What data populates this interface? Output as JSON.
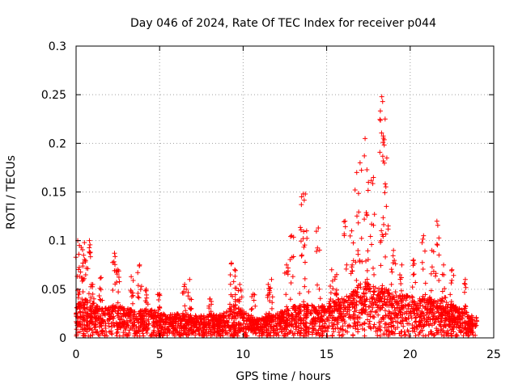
{
  "chart_data": {
    "type": "scatter",
    "title": "Day 046 of 2024, Rate Of TEC Index for receiver p044",
    "xlabel": "GPS time / hours",
    "ylabel": "ROTI / TECUs",
    "xlim": [
      0,
      25
    ],
    "ylim": [
      0,
      0.3
    ],
    "xticks": [
      0,
      5,
      10,
      15,
      20,
      25
    ],
    "xtick_labels": [
      "0",
      "5",
      "10",
      "15",
      "20",
      "25"
    ],
    "yticks": [
      0,
      0.05,
      0.1,
      0.15,
      0.2,
      0.25,
      0.3
    ],
    "ytick_labels": [
      "0",
      "0.05",
      "0.1",
      "0.15",
      "0.2",
      "0.25",
      "0.3"
    ],
    "grid": true,
    "marker": "+",
    "color": "#ff0000",
    "series": [
      {
        "name": "ROTI",
        "envelope": {
          "x": [
            0,
            0.5,
            1,
            1.5,
            2,
            2.5,
            3,
            3.5,
            4,
            4.5,
            5,
            5.5,
            6,
            6.5,
            7,
            7.5,
            8,
            8.5,
            9,
            9.5,
            10,
            10.5,
            11,
            11.5,
            12,
            12.5,
            13,
            13.5,
            14,
            14.5,
            15,
            15.5,
            16,
            16.5,
            17,
            17.5,
            18,
            18.5,
            19,
            19.5,
            20,
            20.5,
            21,
            21.5,
            22,
            22.5,
            23,
            23.5,
            24
          ],
          "typical": [
            0.03,
            0.035,
            0.032,
            0.026,
            0.028,
            0.03,
            0.027,
            0.024,
            0.025,
            0.026,
            0.022,
            0.021,
            0.022,
            0.022,
            0.02,
            0.02,
            0.021,
            0.02,
            0.024,
            0.03,
            0.025,
            0.018,
            0.017,
            0.02,
            0.022,
            0.025,
            0.028,
            0.03,
            0.03,
            0.028,
            0.03,
            0.033,
            0.036,
            0.04,
            0.05,
            0.05,
            0.045,
            0.045,
            0.04,
            0.038,
            0.038,
            0.035,
            0.035,
            0.036,
            0.033,
            0.03,
            0.026,
            0.022,
            0.018
          ]
        },
        "peaks": [
          {
            "x": 0.1,
            "y": 0.1
          },
          {
            "x": 0.2,
            "y": 0.095
          },
          {
            "x": 0.45,
            "y": 0.085
          },
          {
            "x": 0.5,
            "y": 0.098
          },
          {
            "x": 0.8,
            "y": 0.1
          },
          {
            "x": 1.0,
            "y": 0.055
          },
          {
            "x": 1.5,
            "y": 0.062
          },
          {
            "x": 2.3,
            "y": 0.087
          },
          {
            "x": 2.5,
            "y": 0.07
          },
          {
            "x": 3.3,
            "y": 0.063
          },
          {
            "x": 3.8,
            "y": 0.075
          },
          {
            "x": 4.2,
            "y": 0.05
          },
          {
            "x": 5.0,
            "y": 0.045
          },
          {
            "x": 6.5,
            "y": 0.055
          },
          {
            "x": 6.8,
            "y": 0.06
          },
          {
            "x": 8.0,
            "y": 0.04
          },
          {
            "x": 9.3,
            "y": 0.077
          },
          {
            "x": 9.5,
            "y": 0.07
          },
          {
            "x": 9.8,
            "y": 0.055
          },
          {
            "x": 10.6,
            "y": 0.045
          },
          {
            "x": 11.5,
            "y": 0.055
          },
          {
            "x": 11.7,
            "y": 0.06
          },
          {
            "x": 12.6,
            "y": 0.075
          },
          {
            "x": 12.9,
            "y": 0.105
          },
          {
            "x": 13.5,
            "y": 0.145
          },
          {
            "x": 13.6,
            "y": 0.148
          },
          {
            "x": 13.8,
            "y": 0.11
          },
          {
            "x": 14.5,
            "y": 0.113
          },
          {
            "x": 15.3,
            "y": 0.07
          },
          {
            "x": 15.6,
            "y": 0.065
          },
          {
            "x": 16.1,
            "y": 0.12
          },
          {
            "x": 16.5,
            "y": 0.11
          },
          {
            "x": 16.8,
            "y": 0.17
          },
          {
            "x": 17.0,
            "y": 0.18
          },
          {
            "x": 17.3,
            "y": 0.205
          },
          {
            "x": 17.5,
            "y": 0.16
          },
          {
            "x": 17.8,
            "y": 0.165
          },
          {
            "x": 18.3,
            "y": 0.248
          },
          {
            "x": 18.35,
            "y": 0.243
          },
          {
            "x": 18.5,
            "y": 0.225
          },
          {
            "x": 18.6,
            "y": 0.185
          },
          {
            "x": 19.0,
            "y": 0.09
          },
          {
            "x": 19.5,
            "y": 0.075
          },
          {
            "x": 20.2,
            "y": 0.08
          },
          {
            "x": 20.8,
            "y": 0.105
          },
          {
            "x": 21.3,
            "y": 0.09
          },
          {
            "x": 21.6,
            "y": 0.12
          },
          {
            "x": 22.0,
            "y": 0.075
          },
          {
            "x": 22.5,
            "y": 0.07
          },
          {
            "x": 23.3,
            "y": 0.06
          }
        ]
      }
    ]
  }
}
